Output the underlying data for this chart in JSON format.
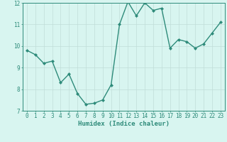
{
  "x": [
    0,
    1,
    2,
    3,
    4,
    5,
    6,
    7,
    8,
    9,
    10,
    11,
    12,
    13,
    14,
    15,
    16,
    17,
    18,
    19,
    20,
    21,
    22,
    23
  ],
  "y": [
    9.8,
    9.6,
    9.2,
    9.3,
    8.3,
    8.7,
    7.8,
    7.3,
    7.35,
    7.5,
    8.2,
    11.0,
    12.05,
    11.4,
    12.0,
    11.65,
    11.75,
    9.9,
    10.3,
    10.2,
    9.9,
    10.1,
    10.6,
    11.1
  ],
  "line_color": "#2e8b7a",
  "marker": "D",
  "marker_size": 2.0,
  "bg_color": "#d8f5f0",
  "grid_color": "#c0ddd8",
  "xlabel": "Humidex (Indice chaleur)",
  "xlim_min": -0.5,
  "xlim_max": 23.5,
  "ylim": [
    7,
    12
  ],
  "yticks": [
    7,
    8,
    9,
    10,
    11,
    12
  ],
  "xticks": [
    0,
    1,
    2,
    3,
    4,
    5,
    6,
    7,
    8,
    9,
    10,
    11,
    12,
    13,
    14,
    15,
    16,
    17,
    18,
    19,
    20,
    21,
    22,
    23
  ],
  "xlabel_fontsize": 6.5,
  "tick_fontsize": 5.5,
  "line_width": 1.0,
  "tick_color": "#2e8b7a",
  "spine_color": "#2e8b7a"
}
